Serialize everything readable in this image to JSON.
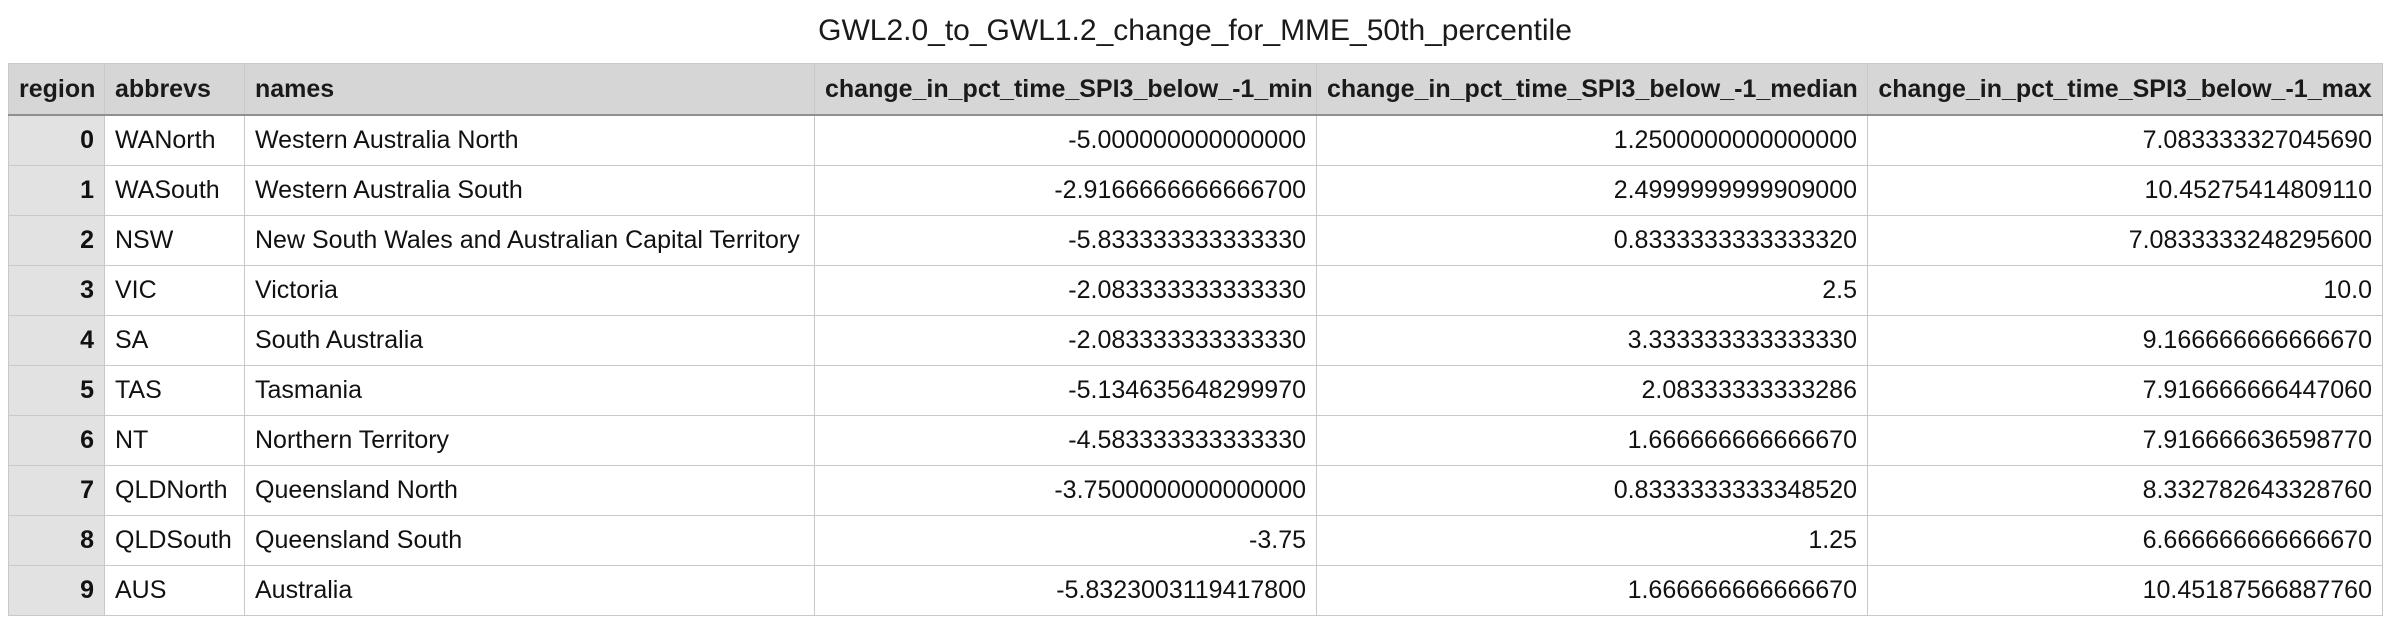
{
  "title": "GWL2.0_to_GWL1.2_change_for_MME_50th_percentile",
  "table": {
    "columns": [
      "region",
      "abbrevs",
      "names",
      "change_in_pct_time_SPI3_below_-1_min",
      "change_in_pct_time_SPI3_below_-1_median",
      "change_in_pct_time_SPI3_below_-1_max"
    ],
    "rows": [
      [
        "0",
        "WANorth",
        "Western Australia North",
        "-5.000000000000000",
        "1.2500000000000000",
        "7.083333327045690"
      ],
      [
        "1",
        "WASouth",
        "Western Australia South",
        "-2.9166666666666700",
        "2.4999999999909000",
        "10.45275414809110"
      ],
      [
        "2",
        "NSW",
        "New South Wales and Australian Capital Territory",
        "-5.833333333333330",
        "0.8333333333333320",
        "7.0833333248295600"
      ],
      [
        "3",
        "VIC",
        "Victoria",
        "-2.083333333333330",
        "2.5",
        "10.0"
      ],
      [
        "4",
        "SA",
        "South Australia",
        "-2.083333333333330",
        "3.333333333333330",
        "9.166666666666670"
      ],
      [
        "5",
        "TAS",
        "Tasmania",
        "-5.134635648299970",
        "2.08333333333286",
        "7.916666666447060"
      ],
      [
        "6",
        "NT",
        "Northern Territory",
        "-4.583333333333330",
        "1.666666666666670",
        "7.916666636598770"
      ],
      [
        "7",
        "QLDNorth",
        "Queensland North",
        "-3.7500000000000000",
        "0.8333333333348520",
        "8.332782643328760"
      ],
      [
        "8",
        "QLDSouth",
        "Queensland South",
        "-3.75",
        "1.25",
        "6.666666666666670"
      ],
      [
        "9",
        "AUS",
        "Australia",
        "-5.8323003119417800",
        "1.666666666666670",
        "10.45187566887760"
      ]
    ]
  }
}
